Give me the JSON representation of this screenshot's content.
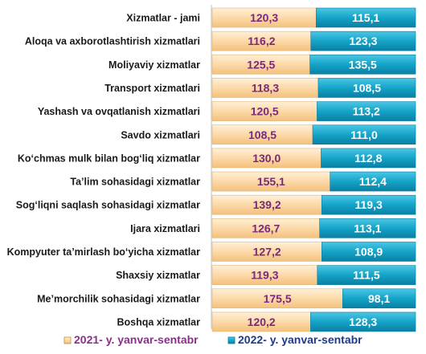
{
  "chart_data": {
    "type": "bar",
    "orientation": "horizontal",
    "stacked": true,
    "categories": [
      "Xizmatlar - jami",
      "Aloqa va axborotlashtirish  xizmatlari",
      "Moliyaviy xizmatlar",
      "Transport xizmatlari",
      "Yashash va ovqatlanish  xizmatlari",
      "Savdo xizmatlari",
      "Ko‘chmas mulk bilan bog‘liq xizmatlar",
      "Ta’lim sohasidagi xizmatlar",
      "Sog‘liqni saqlash sohasidagi xizmatlar",
      "Ijara xizmatlari",
      "Kompyuter ta’mirlash bo‘yicha xizmatlar",
      "Shaxsiy xizmatlar",
      "Me’morchilik sohasidagi xizmatlar",
      "Boshqa xizmatlar"
    ],
    "series": [
      {
        "name": "2021- y. yanvar-sentabr",
        "color": "#fcd9a8",
        "values": [
          120.3,
          116.2,
          125.5,
          118.3,
          120.5,
          108.5,
          130.0,
          155.1,
          139.2,
          126.7,
          127.2,
          119.3,
          175.5,
          120.2
        ],
        "labels": [
          "120,3",
          "116,2",
          "125,5",
          "118,3",
          "120,5",
          "108,5",
          "130,0",
          "155,1",
          "139,2",
          "126,7",
          "127,2",
          "119,3",
          "175,5",
          "120,2"
        ]
      },
      {
        "name": "2022- y. yanvar-sentabr",
        "color": "#1aa7c9",
        "values": [
          115.1,
          123.3,
          135.5,
          108.5,
          113.2,
          111.0,
          112.8,
          112.4,
          119.3,
          113.1,
          108.9,
          111.5,
          98.1,
          128.3
        ],
        "labels": [
          "115,1",
          "123,3",
          "135,5",
          "108,5",
          "113,2",
          "111,0",
          "112,8",
          "112,4",
          "119,3",
          "113,1",
          "108,9",
          "111,5",
          "98,1",
          "128,3"
        ]
      }
    ],
    "legend_position": "bottom",
    "grid": false
  }
}
